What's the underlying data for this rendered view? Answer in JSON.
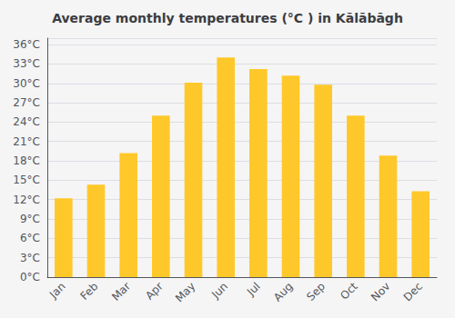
{
  "chart_data": {
    "type": "bar",
    "title": "Average monthly temperatures (°C ) in Kālābāgh",
    "categories": [
      "Jan",
      "Feb",
      "Mar",
      "Apr",
      "May",
      "Jun",
      "Jul",
      "Aug",
      "Sep",
      "Oct",
      "Nov",
      "Dec"
    ],
    "values": [
      12.2,
      14.3,
      19.2,
      25.0,
      30.1,
      34.0,
      32.2,
      31.2,
      29.8,
      25.0,
      18.8,
      13.3
    ],
    "color": "#FFC82A",
    "ylim": [
      0,
      37
    ],
    "yticks": [
      {
        "value": 0,
        "label": "0°C"
      },
      {
        "value": 3,
        "label": "3°C"
      },
      {
        "value": 6,
        "label": "6°C"
      },
      {
        "value": 9,
        "label": "9°C"
      },
      {
        "value": 12,
        "label": "12°C"
      },
      {
        "value": 15,
        "label": "15°C"
      },
      {
        "value": 18,
        "label": "18°C"
      },
      {
        "value": 21,
        "label": "21°C"
      },
      {
        "value": 24,
        "label": "24°C"
      },
      {
        "value": 27,
        "label": "27°C"
      },
      {
        "value": 30,
        "label": "30°C"
      },
      {
        "value": 33,
        "label": "33°C"
      },
      {
        "value": 36,
        "label": "36°C"
      }
    ],
    "grid": true
  }
}
